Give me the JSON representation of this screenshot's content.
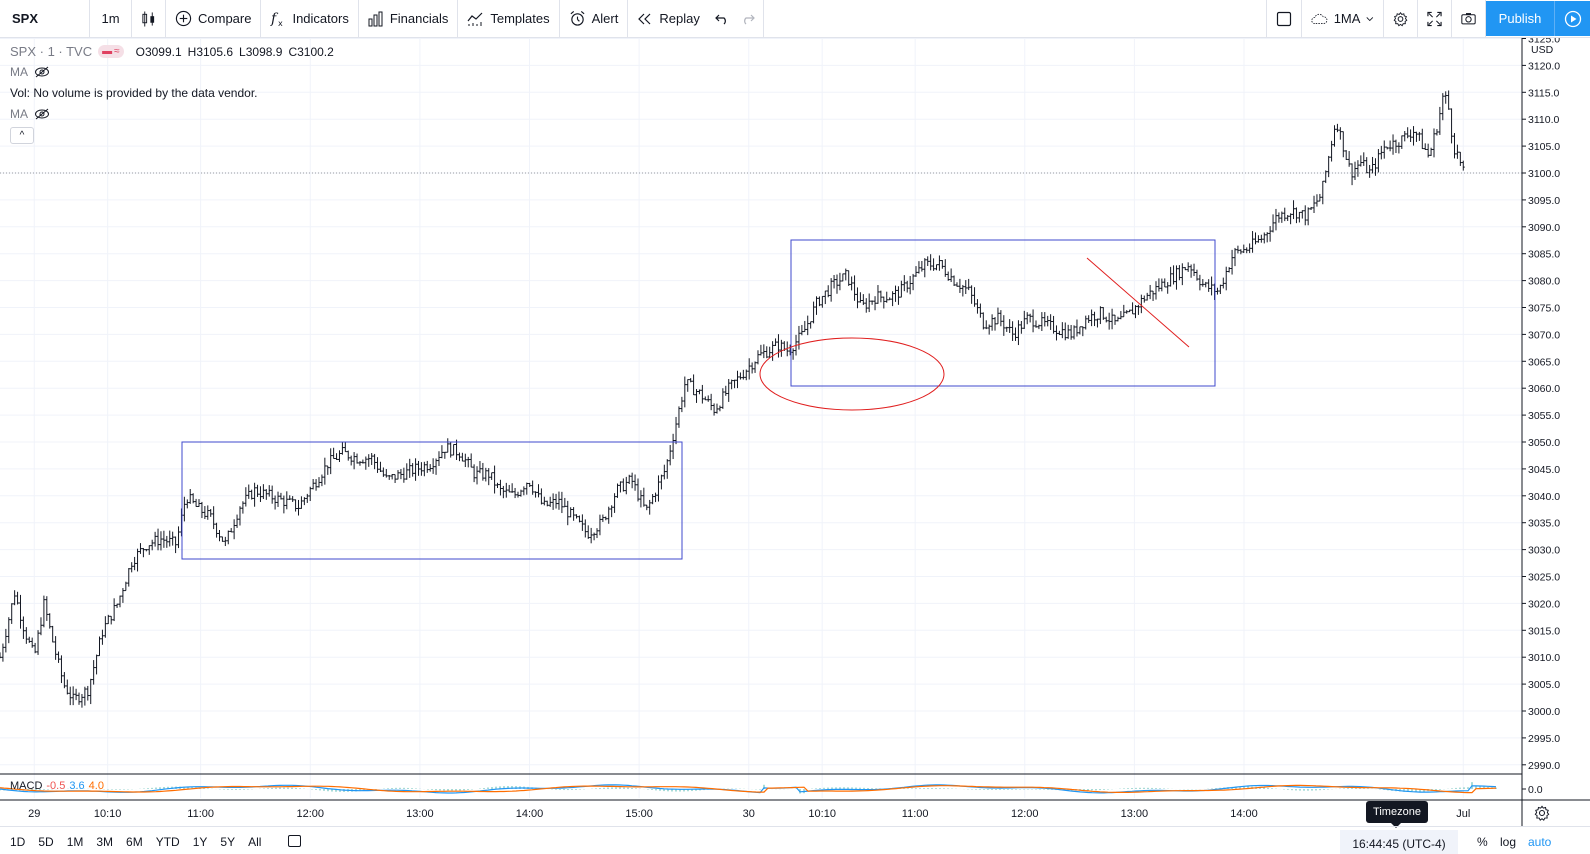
{
  "toolbar": {
    "symbol": "SPX",
    "interval": "1m",
    "compare": "Compare",
    "indicators": "Indicators",
    "financials": "Financials",
    "templates": "Templates",
    "alert": "Alert",
    "replay": "Replay",
    "layout_name": "1MA",
    "publish": "Publish"
  },
  "legend": {
    "title": "SPX · 1 · TVC",
    "open": "O3099.1",
    "high": "H3105.6",
    "low": "L3098.9",
    "close": "C3100.2",
    "ma_label": "MA",
    "vol_text": "Vol: No volume is provided by the data vendor.",
    "ma2_label": "MA"
  },
  "macd": {
    "label": "MACD",
    "v1": "-0.5",
    "v2": "3.6",
    "v3": "4.0",
    "zero_label": "0.0",
    "colors": {
      "macd": "#2196f3",
      "signal": "#ff6d00",
      "hist": "#26a69a"
    }
  },
  "bottom": {
    "ranges": [
      "1D",
      "5D",
      "1M",
      "3M",
      "6M",
      "YTD",
      "1Y",
      "5Y",
      "All"
    ],
    "clock": "16:44:45 (UTC-4)",
    "percent": "%",
    "log": "log",
    "auto": "auto",
    "timezone_tooltip": "Timezone"
  },
  "colors": {
    "candle": "#131722",
    "box": "#3f48cc",
    "ellipse": "#e01e1e",
    "trendline": "#e01e1e",
    "publish": "#2196f3",
    "grid": "#f0f3fa"
  },
  "chart_data": {
    "type": "line",
    "title": "SPX · 1 · TVC",
    "currency_label": "USD",
    "price_ticks": [
      3125,
      3120,
      3115,
      3110,
      3105,
      3100,
      3095,
      3090,
      3085,
      3080,
      3075,
      3070,
      3065,
      3060,
      3055,
      3050,
      3045,
      3040,
      3035,
      3030,
      3025,
      3020,
      3015,
      3010,
      3005,
      3000,
      2995,
      2990
    ],
    "ylim": [
      2988,
      3126
    ],
    "time_ticks": [
      {
        "label": "29",
        "t": 0.35
      },
      {
        "label": "10:10",
        "t": 1.1
      },
      {
        "label": "11:00",
        "t": 2.05
      },
      {
        "label": "12:00",
        "t": 3.17
      },
      {
        "label": "13:00",
        "t": 4.29
      },
      {
        "label": "14:00",
        "t": 5.41
      },
      {
        "label": "15:00",
        "t": 6.53
      },
      {
        "label": "30",
        "t": 7.65
      },
      {
        "label": "10:10",
        "t": 8.4
      },
      {
        "label": "11:00",
        "t": 9.35
      },
      {
        "label": "12:00",
        "t": 10.47
      },
      {
        "label": "13:00",
        "t": 11.59
      },
      {
        "label": "14:00",
        "t": 12.71
      },
      {
        "label": "Jul",
        "t": 14.95
      }
    ],
    "xlim": [
      0,
      15.55
    ],
    "series": [
      {
        "x": [
          0.0,
          0.15,
          0.25,
          0.35,
          0.45,
          0.55,
          0.65,
          0.75,
          0.9,
          1.05,
          1.2,
          1.35,
          1.5,
          1.65,
          1.8,
          1.9,
          2.0,
          2.15,
          2.3,
          2.45,
          2.6,
          2.75,
          2.9,
          3.05,
          3.2,
          3.35,
          3.5,
          3.65,
          3.8,
          3.95,
          4.1,
          4.25,
          4.4,
          4.55,
          4.7,
          4.85,
          5.0,
          5.1,
          5.25,
          5.4,
          5.55,
          5.7,
          5.85,
          6.0,
          6.15,
          6.3,
          6.45,
          6.6,
          6.8,
          7.0,
          7.15,
          7.3,
          7.45,
          7.55,
          7.65,
          7.75,
          7.85,
          7.95,
          8.05,
          8.2,
          8.35,
          8.5,
          8.65,
          8.8,
          8.95,
          9.1,
          9.2,
          9.3,
          9.45,
          9.6,
          9.75,
          9.9,
          10.05,
          10.2,
          10.35,
          10.5,
          10.65,
          10.8,
          10.95,
          11.1,
          11.25,
          11.4,
          11.55,
          11.7,
          11.85,
          12.0,
          12.15,
          12.3,
          12.45,
          12.6,
          12.75,
          12.9,
          13.05,
          13.2,
          13.35,
          13.5,
          13.65,
          13.8,
          13.9,
          14.0,
          14.15,
          14.3,
          14.45,
          14.6,
          14.7,
          14.75,
          14.8,
          14.85,
          14.9,
          14.95
        ],
        "y": [
          3010,
          3022,
          3015,
          3010,
          3020,
          3012,
          3005,
          3002,
          3004,
          3015,
          3020,
          3028,
          3031,
          3032,
          3031,
          3040,
          3038,
          3036,
          3031,
          3038,
          3041,
          3040,
          3039,
          3038,
          3042,
          3046,
          3048,
          3047,
          3047,
          3043,
          3044,
          3045,
          3046,
          3049,
          3048,
          3044,
          3044,
          3041,
          3040,
          3043,
          3038,
          3039,
          3036,
          3033,
          3035,
          3041,
          3043,
          3037,
          3045,
          3061,
          3059,
          3056,
          3060,
          3062,
          3064,
          3066,
          3067,
          3068,
          3067,
          3070,
          3076,
          3079,
          3081,
          3075,
          3077,
          3077,
          3078,
          3080,
          3083,
          3083,
          3080,
          3078,
          3072,
          3073,
          3070,
          3073,
          3072,
          3071,
          3070,
          3073,
          3074,
          3072,
          3074,
          3077,
          3079,
          3081,
          3083,
          3079,
          3078,
          3085,
          3086,
          3088,
          3092,
          3093,
          3092,
          3096,
          3110,
          3100,
          3102,
          3100,
          3105,
          3106,
          3108,
          3103,
          3110,
          3115,
          3112,
          3105,
          3103,
          3100
        ]
      }
    ]
  }
}
